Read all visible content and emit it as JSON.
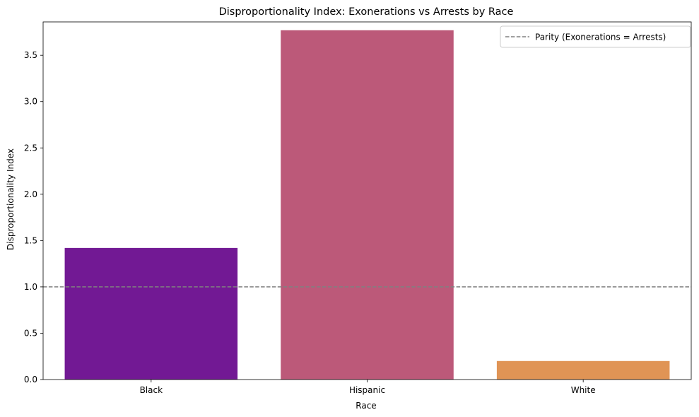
{
  "chart_data": {
    "type": "bar",
    "title": "Disproportionality Index: Exonerations vs Arrests by Race",
    "xlabel": "Race",
    "ylabel": "Disproportionality Index",
    "categories": [
      "Black",
      "Hispanic",
      "White"
    ],
    "values": [
      1.42,
      3.77,
      0.2
    ],
    "colors": [
      "#721994",
      "#bc5979",
      "#e09455"
    ],
    "ylim": [
      0,
      3.86
    ],
    "yticks": [
      "0.0",
      "0.5",
      "1.0",
      "1.5",
      "2.0",
      "2.5",
      "3.0",
      "3.5"
    ],
    "reference_line": {
      "value": 1.0,
      "label": "Parity (Exonerations = Arrests)",
      "color": "#808080",
      "style": "dashed"
    },
    "legend_position": "top-right",
    "grid": false
  }
}
